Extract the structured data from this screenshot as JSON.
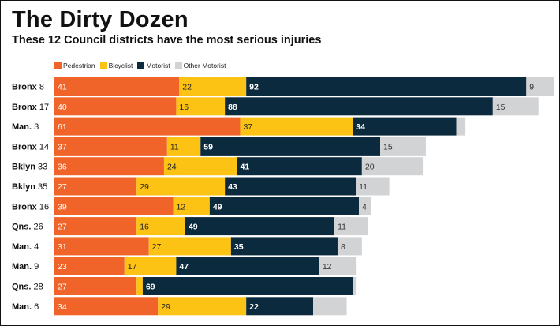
{
  "title": "The Dirty Dozen",
  "subtitle": "These 12 Council districts have the most serious injuries",
  "colors": {
    "Pedestrian": "#f0642a",
    "Bicyclist": "#fcc214",
    "Motorist": "#0c2a3e",
    "Other Motorist": "#d2d3d5"
  },
  "chart_data": {
    "type": "bar",
    "orientation": "horizontal",
    "stacked": true,
    "legend_position": "top-left",
    "categories": [
      {
        "borough": "Bronx",
        "district": "8"
      },
      {
        "borough": "Bronx",
        "district": "17"
      },
      {
        "borough": "Man.",
        "district": "3"
      },
      {
        "borough": "Bronx",
        "district": "14"
      },
      {
        "borough": "Bklyn",
        "district": "33"
      },
      {
        "borough": "Bklyn",
        "district": "35"
      },
      {
        "borough": "Bronx",
        "district": "16"
      },
      {
        "borough": "Qns.",
        "district": "26"
      },
      {
        "borough": "Man.",
        "district": "4"
      },
      {
        "borough": "Man.",
        "district": "9"
      },
      {
        "borough": "Qns.",
        "district": "28"
      },
      {
        "borough": "Man.",
        "district": "6"
      }
    ],
    "series": [
      {
        "name": "Pedestrian",
        "values": [
          41,
          40,
          61,
          37,
          36,
          27,
          39,
          27,
          31,
          23,
          27,
          34
        ],
        "labels": [
          "41",
          "40",
          "61",
          "37",
          "36",
          "27",
          "39",
          "27",
          "31",
          "23",
          "27",
          "34"
        ]
      },
      {
        "name": "Bicyclist",
        "values": [
          22,
          16,
          37,
          11,
          24,
          29,
          12,
          16,
          27,
          17,
          2,
          29
        ],
        "labels": [
          "22",
          "16",
          "37",
          "11",
          "24",
          "29",
          "12",
          "16",
          "27",
          "17",
          "",
          "29"
        ]
      },
      {
        "name": "Motorist",
        "values": [
          92,
          88,
          34,
          59,
          41,
          43,
          49,
          49,
          35,
          47,
          69,
          22
        ],
        "labels": [
          "92",
          "88",
          "34",
          "59",
          "41",
          "43",
          "49",
          "49",
          "35",
          "47",
          "69",
          "22"
        ]
      },
      {
        "name": "Other Motorist",
        "values": [
          9,
          15,
          3,
          15,
          20,
          11,
          4,
          11,
          8,
          12,
          1,
          11
        ],
        "labels": [
          "9",
          "15",
          "",
          "15",
          "20",
          "11",
          "4",
          "11",
          "8",
          "12",
          "",
          ""
        ]
      }
    ],
    "other_labels_outside": [
      false,
      false,
      false,
      false,
      false,
      false,
      false,
      false,
      false,
      false,
      false,
      true
    ]
  }
}
